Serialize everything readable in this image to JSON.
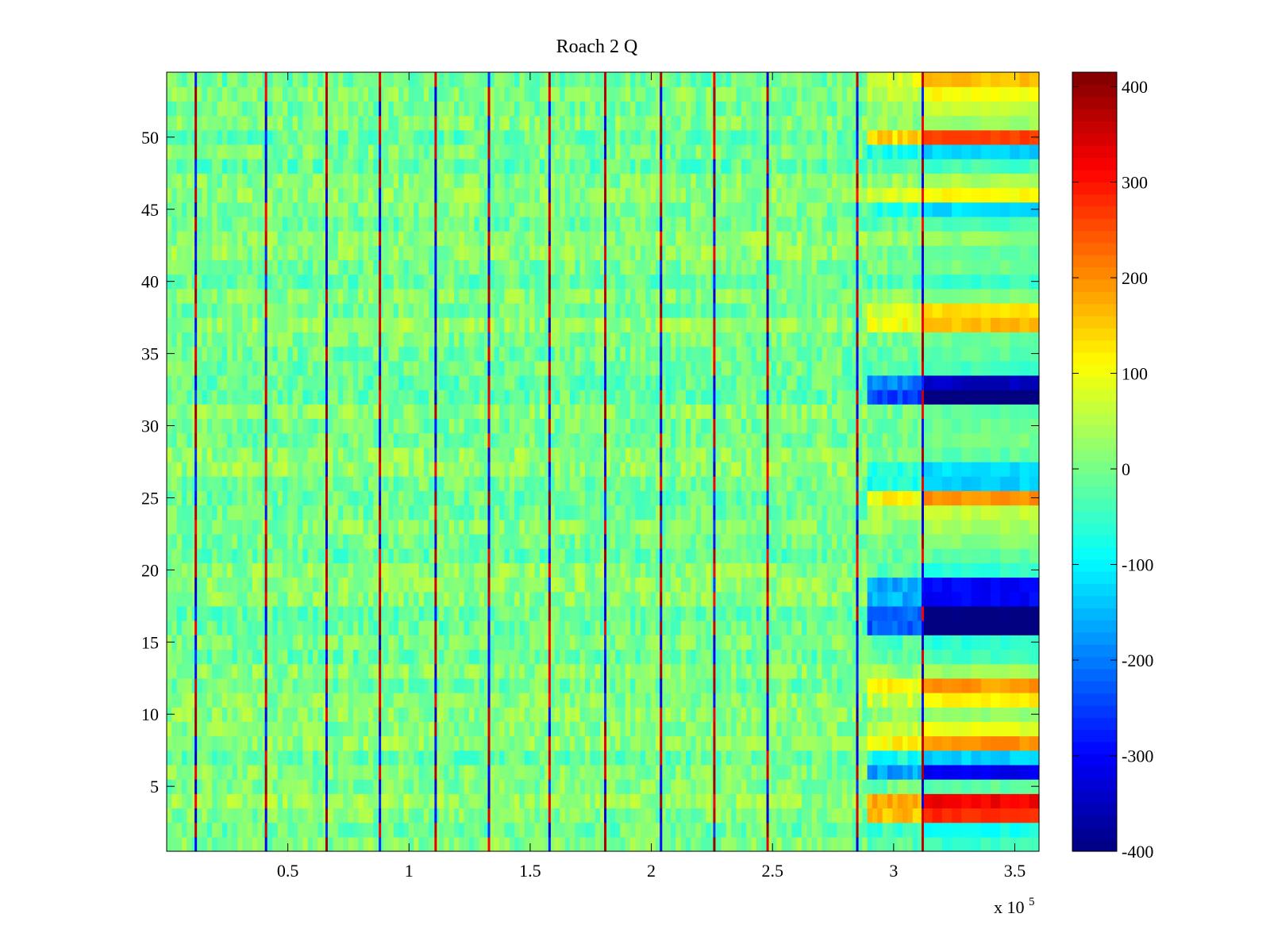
{
  "chart_data": {
    "type": "heatmap",
    "title": "Roach 2 Q",
    "xlabel": "",
    "ylabel": "",
    "x_exponent_label": "x 10",
    "x_exponent_power": "5",
    "xlim": [
      0,
      3.6
    ],
    "ylim": [
      0.5,
      54.5
    ],
    "x_ticks": [
      0.5,
      1,
      1.5,
      2,
      2.5,
      3,
      3.5
    ],
    "x_tick_labels": [
      "0.5",
      "1",
      "1.5",
      "2",
      "2.5",
      "3",
      "3.5"
    ],
    "y_ticks": [
      5,
      10,
      15,
      20,
      25,
      30,
      35,
      40,
      45,
      50
    ],
    "y_tick_labels": [
      "5",
      "10",
      "15",
      "20",
      "25",
      "30",
      "35",
      "40",
      "45",
      "50"
    ],
    "rows": 54,
    "colorbar": {
      "colormap": "jet",
      "limits": [
        -400,
        415
      ],
      "ticks": [
        -400,
        -300,
        -200,
        -100,
        0,
        100,
        200,
        300,
        400
      ],
      "tick_labels": [
        "-400",
        "-300",
        "-200",
        "-100",
        "0",
        "100",
        "200",
        "300",
        "400"
      ]
    },
    "spike_columns_x": [
      0.12,
      0.41,
      0.66,
      0.88,
      1.11,
      1.33,
      1.58,
      1.81,
      2.04,
      2.26,
      2.48,
      2.85,
      3.12
    ],
    "late_regime_start_x": 3.12,
    "late_regime_row_values": {
      "1": -50,
      "2": -80,
      "3": 280,
      "4": 320,
      "5": -20,
      "6": -310,
      "7": -130,
      "8": 200,
      "9": 90,
      "10": 30,
      "11": 120,
      "12": 190,
      "13": 30,
      "14": -40,
      "15": -60,
      "16": -410,
      "17": -410,
      "18": -300,
      "19": -300,
      "20": -60,
      "21": -20,
      "22": 10,
      "23": 40,
      "24": 60,
      "25": 200,
      "26": -130,
      "27": -120,
      "28": -20,
      "29": 0,
      "30": -10,
      "31": -20,
      "32": -430,
      "33": -350,
      "34": -40,
      "35": -20,
      "36": -10,
      "37": 160,
      "38": 140,
      "39": 10,
      "40": -50,
      "41": 0,
      "42": -20,
      "43": 20,
      "44": -40,
      "45": -120,
      "46": 110,
      "47": 40,
      "48": -40,
      "49": -130,
      "50": 270,
      "51": 30,
      "52": 60,
      "53": 110,
      "54": 160
    }
  }
}
